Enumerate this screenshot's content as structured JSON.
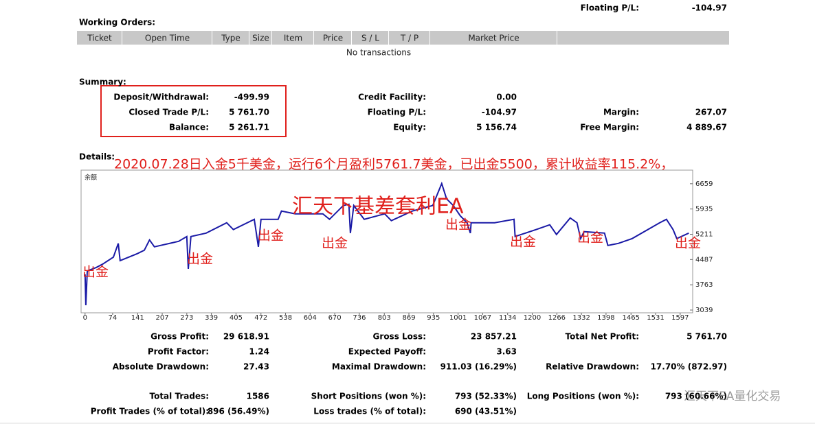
{
  "header": {
    "label": "Floating P/L:",
    "value": "-104.97"
  },
  "working_orders": {
    "title": "Working Orders:",
    "columns": [
      "Ticket",
      "Open Time",
      "Type",
      "Size",
      "Item",
      "Price",
      "S / L",
      "T / P",
      "Market Price"
    ],
    "empty": "No transactions"
  },
  "summary": {
    "title": "Summary:",
    "columns": [
      [
        {
          "label": "Deposit/Withdrawal:",
          "value": "-499.99"
        },
        {
          "label": "Closed Trade P/L:",
          "value": "5 761.70"
        },
        {
          "label": "Balance:",
          "value": "5 261.71"
        }
      ],
      [
        {
          "label": "Credit Facility:",
          "value": "0.00"
        },
        {
          "label": "Floating P/L:",
          "value": "-104.97"
        },
        {
          "label": "Equity:",
          "value": "5 156.74"
        }
      ],
      [
        {
          "label": "Margin:",
          "value": "267.07"
        },
        {
          "label": "Free Margin:",
          "value": "4 889.67"
        }
      ]
    ]
  },
  "details": {
    "title": "Details:",
    "caption": "2020.07.28日入金5千美金，运行6个月盈利5761.7美金，已出金5500，累计收益率115.2%，",
    "ea_name": "汇天下基差套利EA",
    "annotations": [
      "出金",
      "出金",
      "出金",
      "出金",
      "出金",
      "出金",
      "出金",
      "出金"
    ]
  },
  "chart_data": {
    "type": "line",
    "x": [
      0,
      2,
      6,
      30,
      48,
      76,
      89,
      94,
      140,
      159,
      173,
      186,
      251,
      273,
      277,
      284,
      325,
      380,
      398,
      454,
      465,
      472,
      518,
      527,
      564,
      638,
      656,
      693,
      708,
      712,
      721,
      749,
      804,
      822,
      878,
      933,
      957,
      970,
      988,
      1007,
      1025,
      1034,
      1036,
      1099,
      1151,
      1154,
      1210,
      1247,
      1265,
      1302,
      1320,
      1330,
      1339,
      1394,
      1403,
      1431,
      1468,
      1542,
      1560,
      1578,
      1588,
      1620
    ],
    "series": [
      {
        "name": "余额",
        "color": "#1a1aa6",
        "values": [
          4063,
          3177,
          4162,
          4260,
          4359,
          4556,
          4950,
          4457,
          4654,
          4753,
          5048,
          4851,
          5009,
          5147,
          4221,
          5147,
          5245,
          5541,
          5344,
          5639,
          4851,
          5639,
          5639,
          5876,
          5797,
          5797,
          5639,
          6034,
          6073,
          5245,
          6034,
          5639,
          5797,
          5600,
          5876,
          6034,
          6664,
          6230,
          6034,
          5738,
          5541,
          5245,
          5541,
          5541,
          5639,
          5147,
          5344,
          5482,
          5206,
          5679,
          5541,
          5088,
          5285,
          5245,
          4891,
          4950,
          5088,
          5541,
          5639,
          5344,
          5088,
          5245
        ]
      }
    ],
    "xlim": [
      -7,
      1625
    ],
    "ylim": [
      2960,
      7010
    ],
    "xticks": [
      0,
      74,
      141,
      207,
      273,
      339,
      405,
      472,
      538,
      604,
      670,
      736,
      803,
      869,
      935,
      1001,
      1067,
      1134,
      1200,
      1266,
      1332,
      1398,
      1465,
      1531,
      1597
    ],
    "yticks": [
      3039,
      3763,
      4487,
      5211,
      5935,
      6659
    ]
  },
  "stats": {
    "rows": [
      [
        {
          "label": "Gross Profit:",
          "value": "29 618.91"
        },
        {
          "label": "Gross Loss:",
          "value": "23 857.21"
        },
        {
          "label": "Total Net Profit:",
          "value": "5 761.70"
        }
      ],
      [
        {
          "label": "Profit Factor:",
          "value": "1.24"
        },
        {
          "label": "Expected Payoff:",
          "value": "3.63"
        }
      ],
      [
        {
          "label": "Absolute Drawdown:",
          "value": "27.43"
        },
        {
          "label": "Maximal Drawdown:",
          "value": "911.03 (16.29%)"
        },
        {
          "label": "Relative Drawdown:",
          "value": "17.70% (872.97)"
        }
      ],
      [
        {
          "label": "Total Trades:",
          "value": "1586"
        },
        {
          "label": "Short Positions (won %):",
          "value": "793 (52.33%)"
        },
        {
          "label": "Long Positions (won %):",
          "value": "793 (60.66%)"
        }
      ],
      [
        {
          "label": "Profit Trades (% of total):",
          "value": "896 (56.49%)"
        },
        {
          "label": "Loss trades (% of total):",
          "value": "690 (43.51%)"
        }
      ]
    ]
  },
  "watermark": "汇天下EA量化交易"
}
